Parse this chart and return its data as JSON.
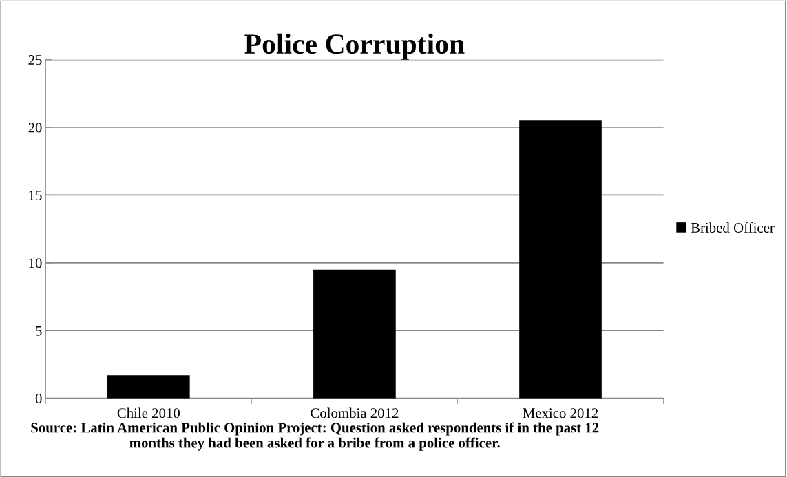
{
  "chart_data": {
    "type": "bar",
    "title": "Police Corruption",
    "categories": [
      "Chile 2010",
      "Colombia 2012",
      "Mexico 2012"
    ],
    "series": [
      {
        "name": "Bribed Officer",
        "color": "#000000",
        "values": [
          1.7,
          9.5,
          20.5
        ]
      }
    ],
    "ylim": [
      0,
      25
    ],
    "yticks": [
      0,
      5,
      10,
      15,
      20,
      25
    ],
    "grid": "y",
    "legend": "right",
    "annotations": [
      "Source: Latin American Public Opinion Project: Question asked respondents if in the past 12 months they had been asked for a bribe from a police officer."
    ]
  }
}
